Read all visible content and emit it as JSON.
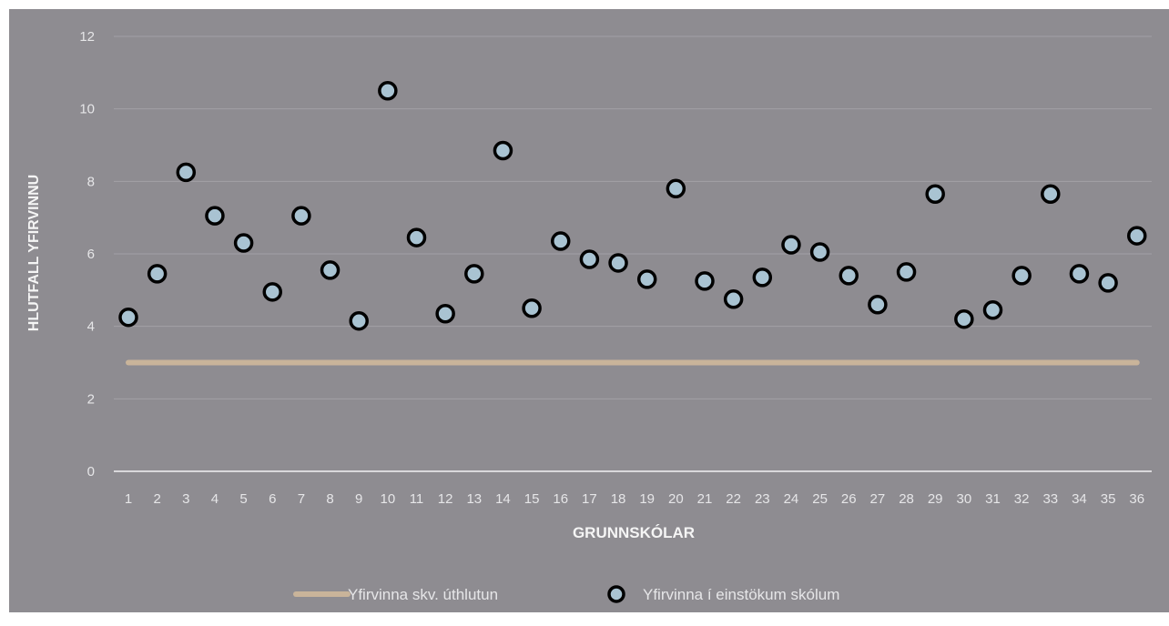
{
  "chart_data": {
    "type": "scatter",
    "title": "",
    "xlabel": "GRUNNSKÓLAR",
    "ylabel": "HLUTFALL YFIRVINNU",
    "ylim": [
      0,
      12
    ],
    "yticks": [
      "0",
      "2",
      "4",
      "6",
      "8",
      "10",
      "12"
    ],
    "grid": true,
    "legend_position": "bottom",
    "categories": [
      "1",
      "2",
      "3",
      "4",
      "5",
      "6",
      "7",
      "8",
      "9",
      "10",
      "11",
      "12",
      "13",
      "14",
      "15",
      "16",
      "17",
      "18",
      "19",
      "20",
      "21",
      "22",
      "23",
      "24",
      "25",
      "26",
      "27",
      "28",
      "29",
      "30",
      "31",
      "32",
      "33",
      "34",
      "35",
      "36"
    ],
    "series": [
      {
        "name": "Yfirvinna skv. úthlutun",
        "type": "line",
        "color": "#c9b49a",
        "values": [
          3,
          3,
          3,
          3,
          3,
          3,
          3,
          3,
          3,
          3,
          3,
          3,
          3,
          3,
          3,
          3,
          3,
          3,
          3,
          3,
          3,
          3,
          3,
          3,
          3,
          3,
          3,
          3,
          3,
          3,
          3,
          3,
          3,
          3,
          3,
          3
        ]
      },
      {
        "name": "Yfirvinna í einstökum skólum",
        "type": "scatter",
        "color": "#a9c3d2",
        "edge_color": "#000000",
        "values": [
          4.25,
          5.45,
          8.25,
          7.05,
          6.3,
          4.95,
          7.05,
          5.55,
          4.15,
          10.5,
          6.45,
          4.35,
          5.45,
          8.85,
          4.5,
          6.35,
          5.85,
          5.75,
          5.3,
          7.8,
          5.25,
          4.75,
          5.35,
          6.25,
          6.05,
          5.4,
          4.6,
          5.5,
          7.65,
          4.2,
          4.45,
          5.4,
          7.65,
          5.45,
          5.2,
          6.5
        ]
      }
    ],
    "colors": {
      "background": "#8e8c91",
      "grid": "#a3a1a6",
      "text": "#e6e6e8",
      "axis_title": "#f5f5f5"
    }
  }
}
